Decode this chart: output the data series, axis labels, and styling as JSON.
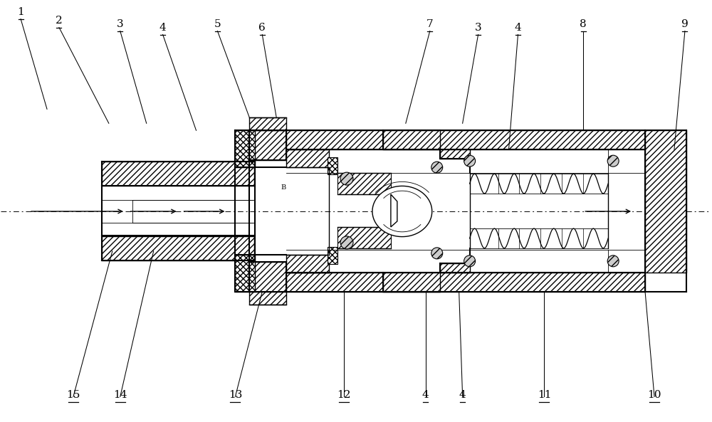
{
  "bg_color": "#ffffff",
  "line_color": "#000000",
  "fig_width": 10.0,
  "fig_height": 5.93,
  "top_labels": [
    [
      "1",
      28,
      570
    ],
    [
      "2",
      82,
      558
    ],
    [
      "3",
      168,
      553
    ],
    [
      "4",
      228,
      548
    ],
    [
      "5",
      305,
      553
    ],
    [
      "6",
      368,
      548
    ],
    [
      "7",
      604,
      553
    ],
    [
      "3",
      672,
      548
    ],
    [
      "4",
      728,
      548
    ],
    [
      "8",
      820,
      553
    ],
    [
      "9",
      963,
      553
    ]
  ],
  "bot_labels": [
    [
      "15",
      102,
      30
    ],
    [
      "14",
      168,
      30
    ],
    [
      "13",
      330,
      30
    ],
    [
      "12",
      483,
      30
    ],
    [
      "4",
      598,
      30
    ],
    [
      "4",
      650,
      30
    ],
    [
      "11",
      765,
      30
    ],
    [
      "10",
      920,
      30
    ]
  ]
}
